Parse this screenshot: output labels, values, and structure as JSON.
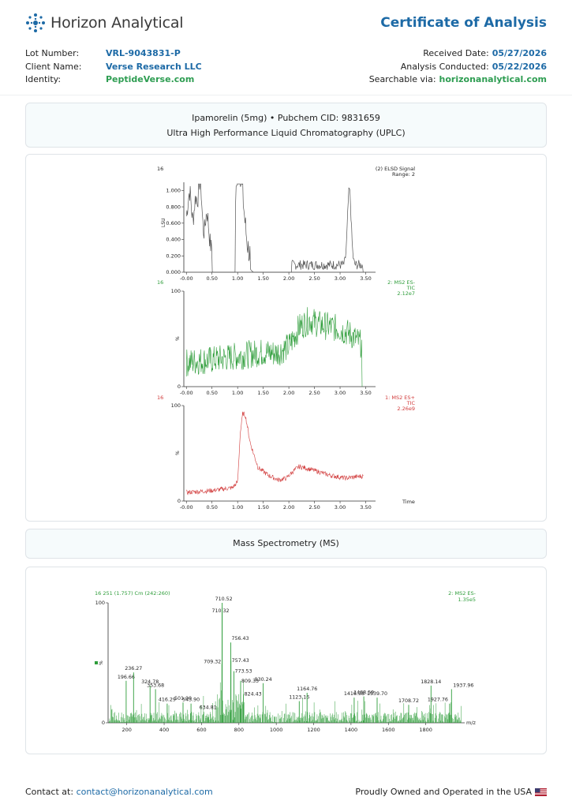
{
  "brand": {
    "name": "Horizon Analytical",
    "accent": "#1d6aa6",
    "green": "#2e9d52"
  },
  "header": {
    "title": "Certificate of Analysis"
  },
  "meta_left": [
    {
      "label": "Lot Number:",
      "value": "VRL-9043831-P"
    },
    {
      "label": "Client Name:",
      "value": "Verse Research LLC"
    },
    {
      "label": "Identity:",
      "value": "PeptideVerse.com"
    }
  ],
  "meta_right": [
    {
      "label": "Received Date:",
      "value": "05/27/2026"
    },
    {
      "label": "Analysis Conducted:",
      "value": "05/22/2026"
    },
    {
      "label": "Searchable via:",
      "value": "horizonanalytical.com"
    }
  ],
  "sample": {
    "line1": "Ipamorelin (5mg) • Pubchem CID: 9831659",
    "line2": "Ultra High Performance Liquid Chromatography (UPLC)"
  },
  "ms_heading": "Mass Spectrometry (MS)",
  "footer": {
    "contact_label": "Contact at:",
    "contact_email": "contact@horizonanalytical.com",
    "origin": "Proudly Owned and Operated in the USA",
    "flag_icon": "us-flag-icon"
  },
  "chart_data": [
    {
      "type": "line",
      "corner_label": "16",
      "header_label": "(2) ELSD Signal",
      "range_label": "Range: 2",
      "ylabel": "LSU",
      "color": "#555555",
      "xlim": [
        -0.05,
        3.6
      ],
      "x_ticks": [
        "-0.00",
        "0.50",
        "1.00",
        "1.50",
        "2.00",
        "2.50",
        "3.00",
        "3.50"
      ],
      "ylim": [
        0,
        1.0
      ],
      "y_ticks": [
        "0.000",
        "0.200",
        "0.400",
        "0.600",
        "0.800",
        "1.000"
      ],
      "peaks": [
        {
          "x": 0.0,
          "y": 0.32
        },
        {
          "x": 0.07,
          "y": 0.65
        },
        {
          "x": 0.18,
          "y": 0.6
        },
        {
          "x": 0.27,
          "y": 0.82
        },
        {
          "x": 0.4,
          "y": 0.45
        },
        {
          "x": 1.03,
          "y": 1.08
        },
        {
          "x": 3.18,
          "y": 0.92
        }
      ]
    },
    {
      "type": "line",
      "corner_label": "16",
      "header_label": "2: MS2 ES-",
      "sub_label": "TIC",
      "scale_label": "2.12e7",
      "ylabel": "%",
      "color": "#2e9d3a",
      "xlim": [
        -0.05,
        3.6
      ],
      "x_ticks": [
        "-0.00",
        "0.50",
        "1.00",
        "1.50",
        "2.00",
        "2.50",
        "3.00",
        "3.50"
      ],
      "ylim": [
        0,
        100
      ],
      "y_ticks": [
        "0",
        "100"
      ],
      "x": [
        0.0,
        0.25,
        0.5,
        0.75,
        1.0,
        1.25,
        1.5,
        1.75,
        2.0,
        2.2,
        2.4,
        2.6,
        2.8,
        3.0,
        3.2,
        3.4
      ],
      "y": [
        25,
        27,
        28,
        30,
        32,
        34,
        36,
        35,
        42,
        62,
        70,
        65,
        63,
        60,
        55,
        45
      ]
    },
    {
      "type": "line",
      "corner_label": "16",
      "header_label": "1: MS2 ES+",
      "sub_label": "TIC",
      "scale_label": "2.26e9",
      "ylabel": "%",
      "xlabel": "Time",
      "color": "#d13a3a",
      "xlim": [
        -0.05,
        3.6
      ],
      "x_ticks": [
        "-0.00",
        "0.50",
        "1.00",
        "1.50",
        "2.00",
        "2.50",
        "3.00",
        "3.50"
      ],
      "ylim": [
        0,
        100
      ],
      "y_ticks": [
        "0",
        "100"
      ],
      "x": [
        0.0,
        0.5,
        0.9,
        1.0,
        1.05,
        1.1,
        1.15,
        1.25,
        1.4,
        1.6,
        1.8,
        1.95,
        2.1,
        2.2,
        2.3,
        2.5,
        2.8,
        3.1,
        3.4
      ],
      "y": [
        9,
        11,
        14,
        20,
        70,
        92,
        90,
        60,
        35,
        27,
        22,
        24,
        32,
        36,
        35,
        32,
        27,
        24,
        26
      ]
    },
    {
      "type": "bar",
      "corner_label": "16 251 (1.757) Cm (242:260)",
      "header_label": "2: MS2 ES-",
      "scale_label": "1.35e5",
      "ylabel": "%",
      "xlabel": "m/z",
      "color": "#2e9d3a",
      "xlim": [
        100,
        2000
      ],
      "x_ticks": [
        "200",
        "400",
        "600",
        "800",
        "1000",
        "1200",
        "1400",
        "1600",
        "1800"
      ],
      "ylim": [
        0,
        100
      ],
      "y_ticks": [
        "0",
        "100"
      ],
      "labeled_peaks": [
        {
          "mz": 196.66,
          "y": 35
        },
        {
          "mz": 236.27,
          "y": 42
        },
        {
          "mz": 324.78,
          "y": 31
        },
        {
          "mz": 353.68,
          "y": 28
        },
        {
          "mz": 416.29,
          "y": 16
        },
        {
          "mz": 501.0,
          "y": 17
        },
        {
          "mz": 543.9,
          "y": 16
        },
        {
          "mz": 634.81,
          "y": 5
        },
        {
          "mz": 709.32,
          "y": 49
        },
        {
          "mz": 710.32,
          "y": 96
        },
        {
          "mz": 710.52,
          "y": 100
        },
        {
          "mz": 756.43,
          "y": 67
        },
        {
          "mz": 757.43,
          "y": 52
        },
        {
          "mz": 773.53,
          "y": 43
        },
        {
          "mz": 809.33,
          "y": 35
        },
        {
          "mz": 824.43,
          "y": 24
        },
        {
          "mz": 930.24,
          "y": 33
        },
        {
          "mz": 1123.16,
          "y": 18
        },
        {
          "mz": 1164.76,
          "y": 25
        },
        {
          "mz": 1416.98,
          "y": 21
        },
        {
          "mz": 1468.59,
          "y": 22
        },
        {
          "mz": 1539.7,
          "y": 21
        },
        {
          "mz": 1708.72,
          "y": 15
        },
        {
          "mz": 1828.14,
          "y": 31
        },
        {
          "mz": 1927.76,
          "y": 16
        },
        {
          "mz": 1937.96,
          "y": 28
        }
      ]
    }
  ]
}
